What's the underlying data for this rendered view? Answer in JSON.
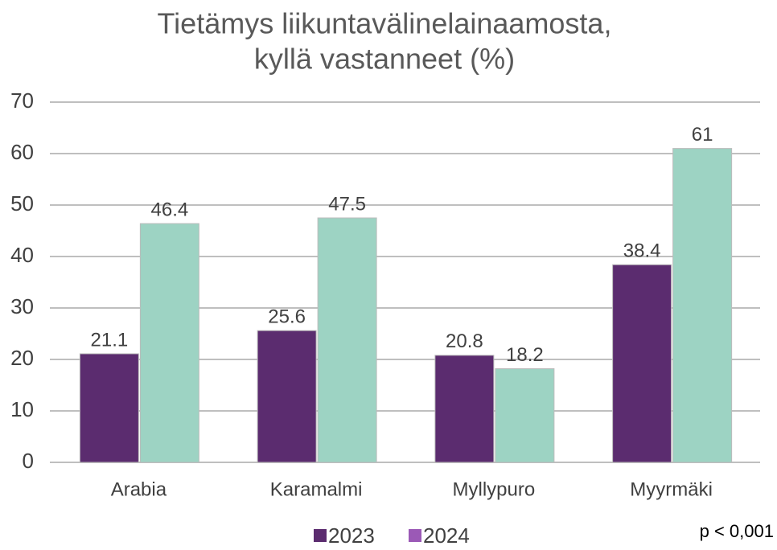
{
  "chart_data": {
    "type": "bar",
    "title": [
      "Tietämys liikuntavälinelainaamosta,",
      "kyllä vastanneet (%)"
    ],
    "categories": [
      "Arabia",
      "Karamalmi",
      "Myllypuro",
      "Myyrmäki"
    ],
    "series": [
      {
        "name": "2023",
        "color": "#5b2c6f",
        "legend_color": "#5b2c6f",
        "values": [
          21.1,
          25.6,
          20.8,
          38.4
        ]
      },
      {
        "name": "2024",
        "color": "#9dd3c3",
        "legend_color": "#9b59b6",
        "values": [
          46.4,
          47.5,
          18.2,
          61
        ]
      }
    ],
    "ylim": [
      0,
      70
    ],
    "yticks": [
      0,
      10,
      20,
      30,
      40,
      50,
      60,
      70
    ],
    "grid": true,
    "annotation": "p < 0,001"
  }
}
